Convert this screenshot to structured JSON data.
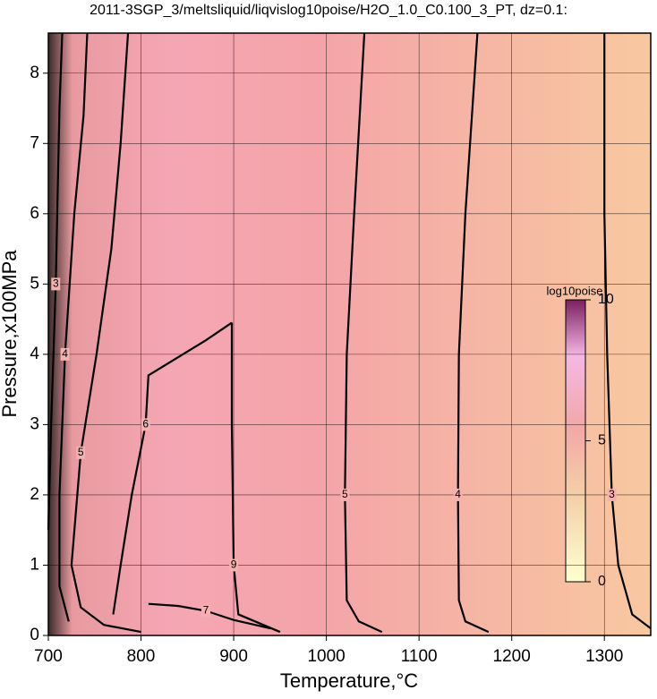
{
  "chart_data": {
    "type": "contour",
    "title": "2011-3SGP_3/meltsliquid/liqvislog10poise/H2O_1.0_C0.100_3_PT, dz=0.1:",
    "x_label": "Temperature,°C",
    "y_label": "Pressure,x100MPa",
    "xlim": [
      700,
      1350
    ],
    "ylim": [
      0,
      8.57
    ],
    "xticks": [
      700,
      800,
      900,
      1000,
      1100,
      1200,
      1300
    ],
    "yticks": [
      0,
      1,
      2,
      3,
      4,
      5,
      6,
      7,
      8
    ],
    "grid": true,
    "contours": [
      {
        "level": 3,
        "x": [
          1300,
          1300,
          1303,
          1308,
          1315,
          1330,
          1350
        ],
        "y": [
          8.57,
          6,
          4,
          2,
          1,
          0.3,
          0.1
        ]
      },
      {
        "level": 4,
        "x": [
          1163,
          1150,
          1143,
          1142,
          1143,
          1150,
          1175
        ],
        "y": [
          8.57,
          6,
          4,
          2,
          0.5,
          0.2,
          0.05
        ]
      },
      {
        "level": 5,
        "x": [
          1041,
          1030,
          1022,
          1020,
          1022,
          1035,
          1060
        ],
        "y": [
          8.57,
          6,
          4,
          2,
          0.5,
          0.2,
          0.05
        ]
      },
      {
        "level": 9,
        "x": [
          950,
          905,
          900,
          898,
          898
        ],
        "y": [
          0.05,
          0.3,
          1,
          3,
          4.45
        ]
      },
      {
        "level": 6,
        "x": [
          898,
          870,
          808,
          805,
          790,
          778,
          770
        ],
        "y": [
          4.45,
          4.2,
          3.7,
          3.0,
          2,
          1,
          0.3
        ]
      },
      {
        "level": 7,
        "x": [
          808,
          840,
          870,
          900,
          940
        ],
        "y": [
          0.45,
          0.42,
          0.35,
          0.22,
          0.1
        ]
      },
      {
        "level": 5,
        "x": [
          786,
          778,
          768,
          752,
          735,
          725,
          735,
          760,
          800
        ],
        "y": [
          8.57,
          7,
          5.5,
          4,
          2.6,
          1,
          0.4,
          0.15,
          0.05
        ]
      },
      {
        "level": 4,
        "x": [
          742,
          738,
          728,
          718,
          712,
          712,
          722
        ],
        "y": [
          8.57,
          7.4,
          6,
          4,
          2,
          0.7,
          0.2
        ]
      },
      {
        "level": 3,
        "x": [
          715,
          712,
          708,
          703,
          700
        ],
        "y": [
          8.57,
          7.5,
          5,
          3,
          1.5
        ]
      }
    ],
    "colorbar": {
      "label": "log10poise",
      "lim": [
        0,
        10
      ],
      "ticks": [
        0,
        5,
        10
      ]
    }
  }
}
